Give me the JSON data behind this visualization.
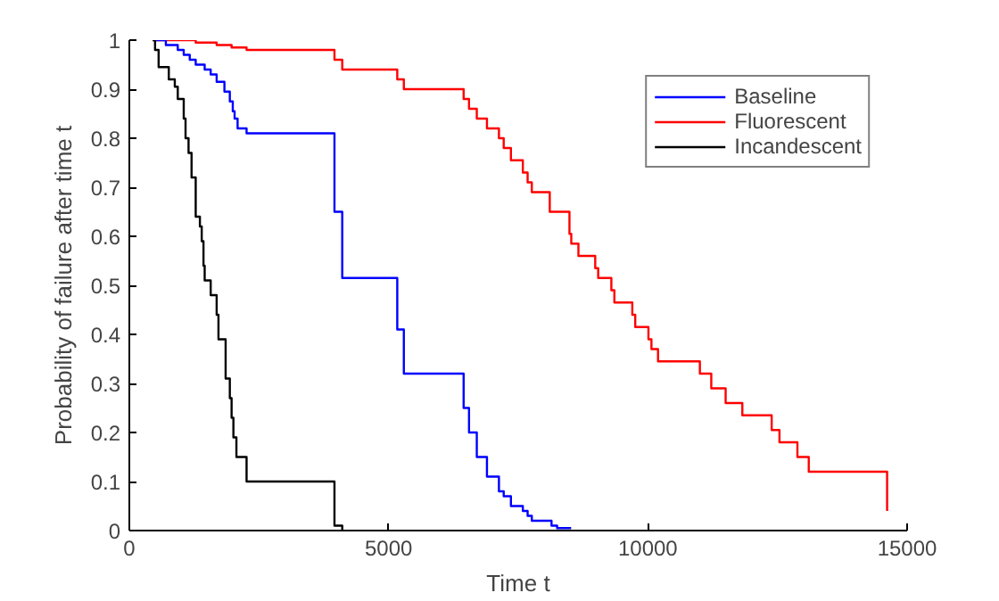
{
  "chart_data": {
    "type": "step",
    "xlabel": "Time t",
    "ylabel": "Probability of failure after time t",
    "xlim": [
      0,
      15000
    ],
    "ylim": [
      0,
      1
    ],
    "xticks": [
      0,
      5000,
      10000,
      15000
    ],
    "yticks": [
      0,
      0.1,
      0.2,
      0.3,
      0.4,
      0.5,
      0.6,
      0.7,
      0.8,
      0.9,
      1
    ],
    "grid": false,
    "legend": "top right",
    "series": [
      {
        "name": "Baseline",
        "color": "#0000ff",
        "x": [
          496,
          704,
          934,
          1049,
          1165,
          1280,
          1453,
          1569,
          1684,
          1834,
          1938,
          1995,
          2030,
          2088,
          2261,
          3956,
          4106,
          5167,
          5294,
          6447,
          6551,
          6701,
          6897,
          7128,
          7220,
          7359,
          7589,
          7681,
          7762,
          8142,
          8250,
          8520
        ],
        "values": [
          1,
          0.99,
          0.98,
          0.97,
          0.96,
          0.95,
          0.94,
          0.93,
          0.915,
          0.895,
          0.875,
          0.855,
          0.84,
          0.82,
          0.81,
          0.65,
          0.515,
          0.41,
          0.32,
          0.25,
          0.2,
          0.15,
          0.11,
          0.08,
          0.07,
          0.05,
          0.04,
          0.03,
          0.02,
          0.01,
          0.005,
          0.005
        ]
      },
      {
        "name": "Fluorescent",
        "color": "#ff0000",
        "x": [
          450,
          1280,
          1684,
          1972,
          2261,
          3956,
          4106,
          5167,
          5294,
          6447,
          6551,
          6701,
          6897,
          7128,
          7220,
          7359,
          7589,
          7681,
          7762,
          8108,
          8488,
          8523,
          8661,
          8985,
          9042,
          9296,
          9354,
          9700,
          9757,
          10011,
          10069,
          10196,
          11003,
          11223,
          11500,
          11822,
          12388,
          12538,
          12884,
          13103,
          14614
        ],
        "values": [
          1,
          0.995,
          0.99,
          0.985,
          0.98,
          0.96,
          0.94,
          0.92,
          0.9,
          0.88,
          0.86,
          0.84,
          0.82,
          0.8,
          0.78,
          0.755,
          0.73,
          0.71,
          0.69,
          0.65,
          0.605,
          0.585,
          0.56,
          0.535,
          0.515,
          0.49,
          0.465,
          0.44,
          0.415,
          0.39,
          0.37,
          0.345,
          0.32,
          0.29,
          0.26,
          0.235,
          0.205,
          0.18,
          0.15,
          0.12,
          0.04
        ]
      },
      {
        "name": "Incandescent",
        "color": "#000000",
        "x": [
          450,
          496,
          565,
          761,
          877,
          934,
          1049,
          1084,
          1142,
          1200,
          1280,
          1361,
          1396,
          1430,
          1453,
          1569,
          1684,
          1719,
          1857,
          1938,
          1972,
          2007,
          2065,
          2261,
          3956,
          4106
        ],
        "values": [
          1,
          0.98,
          0.945,
          0.92,
          0.905,
          0.88,
          0.84,
          0.8,
          0.77,
          0.72,
          0.64,
          0.62,
          0.59,
          0.54,
          0.51,
          0.48,
          0.44,
          0.39,
          0.31,
          0.27,
          0.23,
          0.19,
          0.15,
          0.1,
          0.01,
          0
        ]
      }
    ]
  }
}
